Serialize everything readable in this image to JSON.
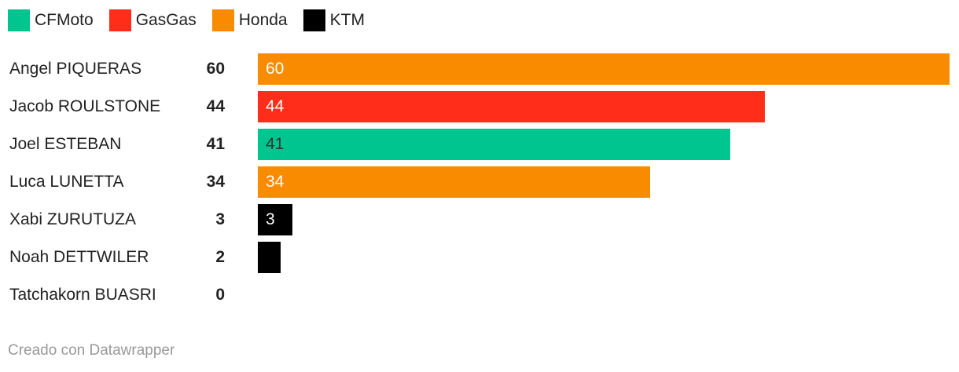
{
  "chart_data": {
    "type": "bar",
    "orientation": "horizontal",
    "legend": {
      "placement": "top-left",
      "entries": [
        {
          "name": "CFMoto",
          "color": "#00c58f"
        },
        {
          "name": "GasGas",
          "color": "#ff2d19"
        },
        {
          "name": "Honda",
          "color": "#f98b00"
        },
        {
          "name": "KTM",
          "color": "#000000"
        }
      ]
    },
    "categories": [
      "Angel PIQUERAS",
      "Jacob ROULSTONE",
      "Joel ESTEBAN",
      "Luca LUNETTA",
      "Xabi ZURUTUZA",
      "Noah DETTWILER",
      "Tatchakorn BUASRI"
    ],
    "values": [
      60,
      44,
      41,
      34,
      3,
      2,
      0
    ],
    "manufacturers": [
      "Honda",
      "GasGas",
      "CFMoto",
      "Honda",
      "KTM",
      "KTM",
      ""
    ],
    "bar_labels": [
      "60",
      "44",
      "41",
      "34",
      "3",
      "",
      ""
    ],
    "xlim": [
      0,
      60
    ],
    "grid": false
  },
  "footer": "Creado con Datawrapper"
}
